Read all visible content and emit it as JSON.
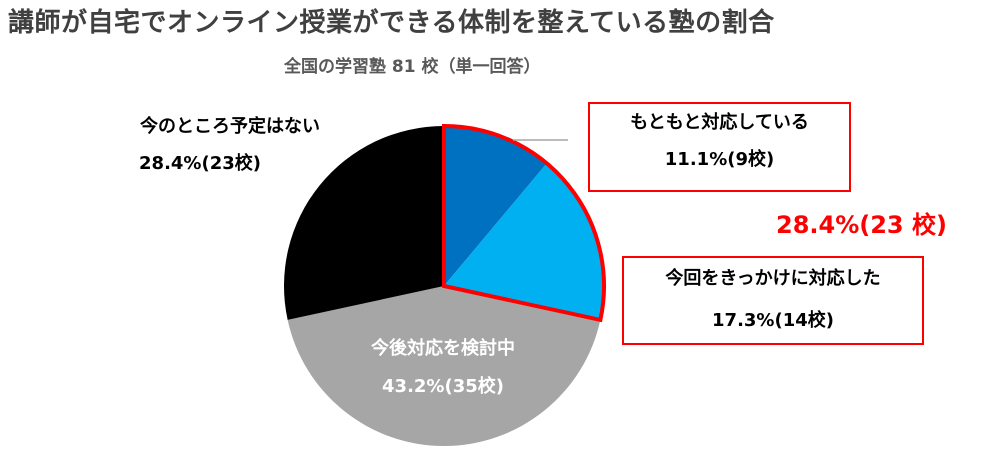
{
  "title": "講師が自宅でオンライン授業ができる体制を整えている塾の割合",
  "subtitle": "全国の学習塾 81 校（単一回答）",
  "group_total_label": "28.4%(23 校)",
  "colors": {
    "motomoto": "#0070c0",
    "kikkake": "#00b0f0",
    "kento": "#a6a6a6",
    "yotei_nashi": "#000000",
    "highlight": "#ff0000"
  },
  "chart_data": {
    "type": "pie",
    "total": 81,
    "slices": [
      {
        "label": "もともと対応している",
        "percent": 11.1,
        "count": 9,
        "value_text": "11.1%(9校)",
        "color": "#0070c0"
      },
      {
        "label": "今回をきっかけに対応した",
        "percent": 17.3,
        "count": 14,
        "value_text": "17.3%(14校)",
        "color": "#00b0f0"
      },
      {
        "label": "今後対応を検討中",
        "percent": 43.2,
        "count": 35,
        "value_text": "43.2%(35校)",
        "color": "#a6a6a6"
      },
      {
        "label": "今のところ予定はない",
        "percent": 28.4,
        "count": 23,
        "value_text": "28.4%(23校)",
        "color": "#000000"
      }
    ]
  }
}
